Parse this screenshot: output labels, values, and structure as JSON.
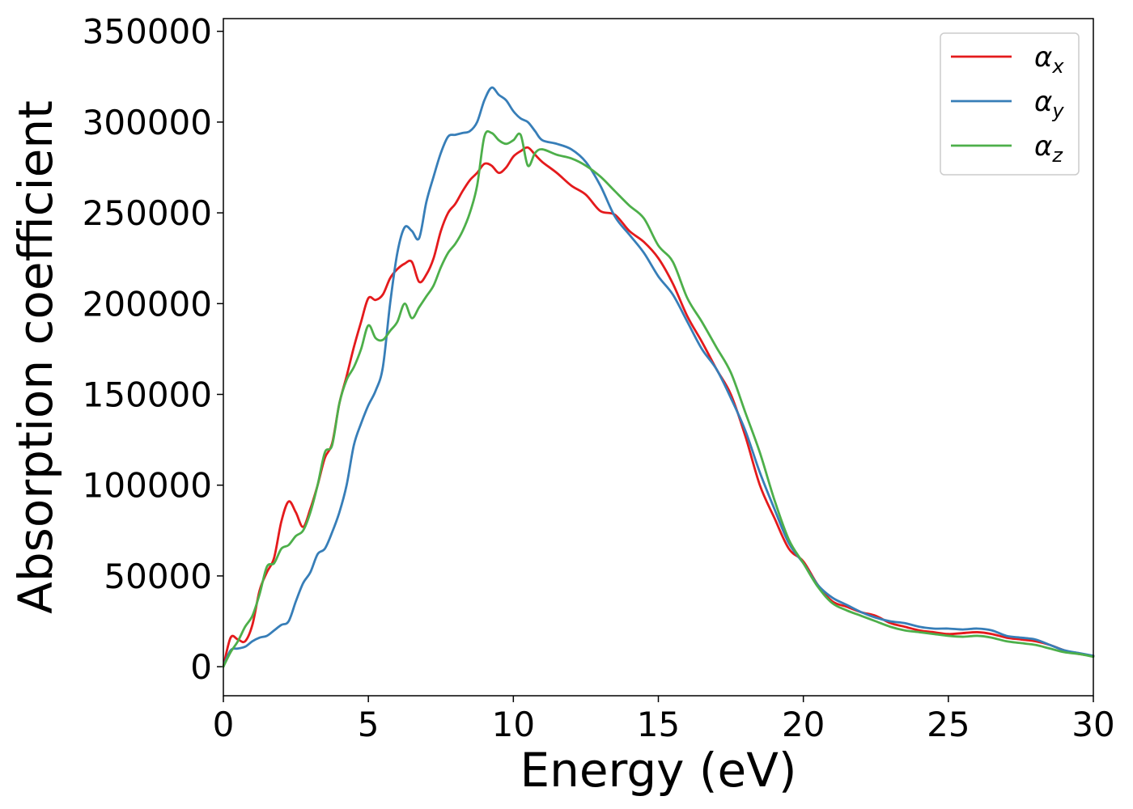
{
  "chart_data": {
    "type": "line",
    "title": "",
    "xlabel": "Energy (eV)",
    "ylabel": "Absorption coefficient",
    "xlim": [
      0,
      30
    ],
    "ylim": [
      -16000,
      357000
    ],
    "xticks": [
      0,
      5,
      10,
      15,
      20,
      25,
      30
    ],
    "xtick_labels": [
      "0",
      "5",
      "10",
      "15",
      "20",
      "25",
      "30"
    ],
    "yticks": [
      0,
      50000,
      100000,
      150000,
      200000,
      250000,
      300000,
      350000
    ],
    "ytick_labels": [
      "0",
      "50000",
      "100000",
      "150000",
      "200000",
      "250000",
      "300000",
      "350000"
    ],
    "grid": false,
    "legend_position": "top-right",
    "series": [
      {
        "name": "α_x",
        "legend_base": "α",
        "legend_sub": "x",
        "color": "#e41a1c",
        "x": [
          0,
          0.25,
          0.5,
          0.75,
          1.0,
          1.25,
          1.5,
          1.75,
          2.0,
          2.25,
          2.5,
          2.75,
          3.0,
          3.25,
          3.5,
          3.75,
          4.0,
          4.25,
          4.5,
          4.75,
          5.0,
          5.25,
          5.5,
          5.75,
          6.0,
          6.25,
          6.5,
          6.75,
          7.0,
          7.25,
          7.5,
          7.75,
          8.0,
          8.25,
          8.5,
          8.75,
          9.0,
          9.25,
          9.5,
          9.75,
          10.0,
          10.25,
          10.5,
          10.75,
          11.0,
          11.5,
          12.0,
          12.5,
          13.0,
          13.5,
          14.0,
          14.5,
          15.0,
          15.5,
          16.0,
          16.5,
          17.0,
          17.5,
          18.0,
          18.5,
          19.0,
          19.5,
          20.0,
          20.5,
          21.0,
          21.5,
          22.0,
          22.5,
          23.0,
          23.5,
          24.0,
          24.5,
          25.0,
          25.5,
          26.0,
          26.5,
          27.0,
          27.5,
          28.0,
          28.5,
          29.0,
          29.5,
          30.0
        ],
        "y": [
          0,
          16000,
          15000,
          14000,
          23000,
          42000,
          52000,
          60000,
          80000,
          91000,
          85000,
          77000,
          87000,
          100000,
          115000,
          123000,
          145000,
          160000,
          176000,
          190000,
          203000,
          202000,
          205000,
          214000,
          219000,
          222000,
          223000,
          212000,
          216000,
          225000,
          240000,
          250000,
          255000,
          262000,
          268000,
          272000,
          277000,
          276000,
          272000,
          275000,
          281000,
          284000,
          286000,
          282000,
          278000,
          272000,
          265000,
          260000,
          251000,
          249000,
          240000,
          234000,
          225000,
          211000,
          193000,
          179000,
          164000,
          150000,
          127000,
          100000,
          82000,
          65000,
          58000,
          45000,
          36000,
          33000,
          30000,
          28000,
          24000,
          22000,
          20000,
          19000,
          18000,
          18500,
          19000,
          18000,
          16000,
          15000,
          14000,
          12000,
          9000,
          7000,
          6000
        ]
      },
      {
        "name": "α_y",
        "legend_base": "α",
        "legend_sub": "y",
        "color": "#377eb8",
        "x": [
          0,
          0.25,
          0.5,
          0.75,
          1.0,
          1.25,
          1.5,
          1.75,
          2.0,
          2.25,
          2.5,
          2.75,
          3.0,
          3.25,
          3.5,
          3.75,
          4.0,
          4.25,
          4.5,
          4.75,
          5.0,
          5.25,
          5.5,
          5.75,
          6.0,
          6.25,
          6.5,
          6.75,
          7.0,
          7.25,
          7.5,
          7.75,
          8.0,
          8.25,
          8.5,
          8.75,
          9.0,
          9.25,
          9.5,
          9.75,
          10.0,
          10.25,
          10.5,
          10.75,
          11.0,
          11.5,
          12.0,
          12.5,
          13.0,
          13.5,
          14.0,
          14.5,
          15.0,
          15.5,
          16.0,
          16.5,
          17.0,
          17.5,
          18.0,
          18.5,
          19.0,
          19.5,
          20.0,
          20.5,
          21.0,
          21.5,
          22.0,
          22.5,
          23.0,
          23.5,
          24.0,
          24.5,
          25.0,
          25.5,
          26.0,
          26.5,
          27.0,
          27.5,
          28.0,
          28.5,
          29.0,
          29.5,
          30.0
        ],
        "y": [
          0,
          9000,
          10000,
          11000,
          14000,
          16000,
          17000,
          20000,
          23000,
          25000,
          36000,
          46000,
          52000,
          62000,
          65000,
          74000,
          85000,
          100000,
          122000,
          134000,
          144000,
          152000,
          165000,
          200000,
          228000,
          242000,
          240000,
          236000,
          256000,
          270000,
          283000,
          292000,
          293000,
          294000,
          295000,
          300000,
          312000,
          319000,
          315000,
          312000,
          306000,
          302000,
          300000,
          295000,
          290000,
          288000,
          285000,
          278000,
          265000,
          248000,
          238000,
          228000,
          215000,
          205000,
          190000,
          175000,
          164000,
          148000,
          130000,
          107000,
          87000,
          68000,
          57000,
          45000,
          38000,
          34000,
          30000,
          27000,
          25000,
          24000,
          22000,
          21000,
          21000,
          20500,
          21000,
          20000,
          17000,
          16000,
          15000,
          12000,
          9000,
          7500,
          6000
        ]
      },
      {
        "name": "α_z",
        "legend_base": "α",
        "legend_sub": "z",
        "color": "#4daf4a",
        "x": [
          0,
          0.25,
          0.5,
          0.75,
          1.0,
          1.25,
          1.5,
          1.75,
          2.0,
          2.25,
          2.5,
          2.75,
          3.0,
          3.25,
          3.5,
          3.75,
          4.0,
          4.25,
          4.5,
          4.75,
          5.0,
          5.25,
          5.5,
          5.75,
          6.0,
          6.25,
          6.5,
          6.75,
          7.0,
          7.25,
          7.5,
          7.75,
          8.0,
          8.25,
          8.5,
          8.75,
          9.0,
          9.25,
          9.5,
          9.75,
          10.0,
          10.25,
          10.5,
          10.75,
          11.0,
          11.5,
          12.0,
          12.5,
          13.0,
          13.5,
          14.0,
          14.5,
          15.0,
          15.5,
          16.0,
          16.5,
          17.0,
          17.5,
          18.0,
          18.5,
          19.0,
          19.5,
          20.0,
          20.5,
          21.0,
          21.5,
          22.0,
          22.5,
          23.0,
          23.5,
          24.0,
          24.5,
          25.0,
          25.5,
          26.0,
          26.5,
          27.0,
          27.5,
          28.0,
          28.5,
          29.0,
          29.5,
          30.0
        ],
        "y": [
          0,
          8000,
          14000,
          22000,
          28000,
          40000,
          55000,
          57000,
          65000,
          67000,
          72000,
          75000,
          85000,
          100000,
          118000,
          122000,
          145000,
          158000,
          165000,
          175000,
          188000,
          181000,
          180000,
          185000,
          190000,
          200000,
          192000,
          198000,
          204000,
          210000,
          220000,
          228000,
          233000,
          240000,
          250000,
          265000,
          292000,
          294000,
          290000,
          288000,
          290000,
          293000,
          276000,
          283000,
          285000,
          282000,
          280000,
          276000,
          270000,
          262000,
          254000,
          247000,
          232000,
          223000,
          203000,
          190000,
          176000,
          162000,
          140000,
          118000,
          92000,
          70000,
          57000,
          44000,
          35000,
          31000,
          28000,
          25000,
          22000,
          20000,
          19000,
          18000,
          17000,
          16500,
          17000,
          16000,
          14000,
          13000,
          12000,
          10000,
          8000,
          7000,
          5500
        ]
      }
    ]
  }
}
